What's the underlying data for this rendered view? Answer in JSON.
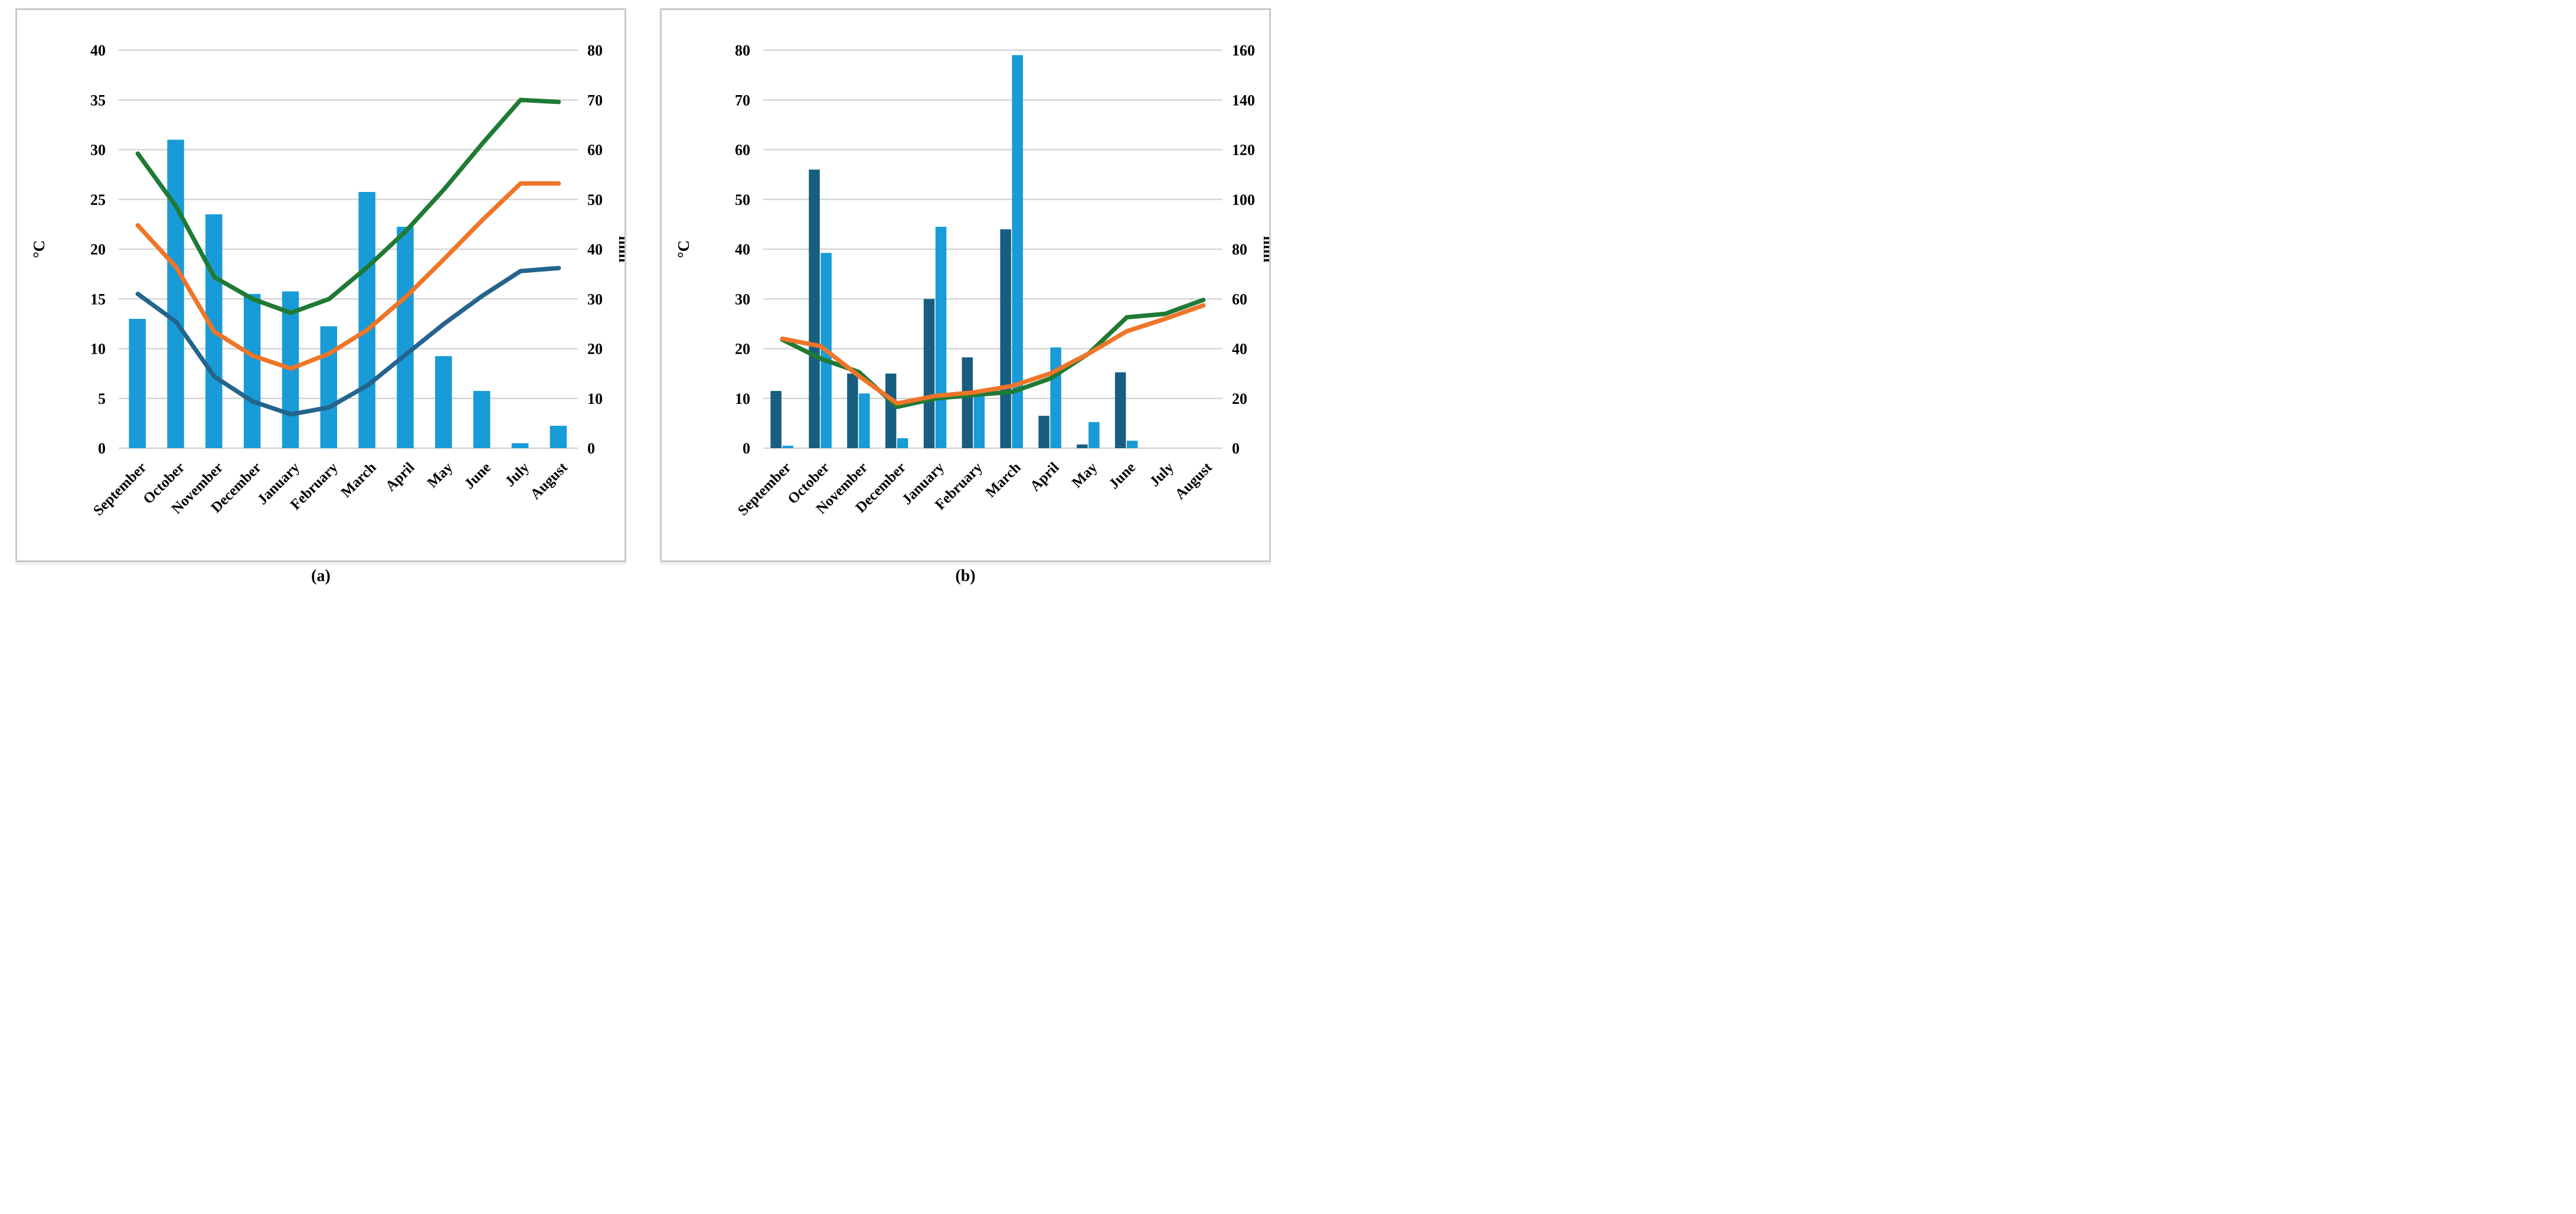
{
  "colors": {
    "gridline": "#d6d6d6",
    "panel_border": "#c9c9c9",
    "bar_light_blue": "#189bd7",
    "bar_dark_blue": "#175e80",
    "line_green": "#1f7a34",
    "line_orange": "#ef7528",
    "line_steel_blue": "#24648d",
    "mm_label_gray": "#7f7f7f",
    "axis_text": "#000000"
  },
  "chart_data": [
    {
      "type": "bar+line combo (climograph)",
      "caption": "(a)",
      "categories": [
        "September",
        "October",
        "November",
        "December",
        "January",
        "February",
        "March",
        "April",
        "May",
        "June",
        "July",
        "August"
      ],
      "left_axis": {
        "unit": "°C",
        "min": 0,
        "max": 40,
        "ticks": [
          0,
          5,
          10,
          15,
          20,
          25,
          30,
          35,
          40
        ],
        "unit_color": "#000000"
      },
      "right_axis": {
        "unit": "mm",
        "min": 0,
        "max": 80,
        "ticks": [
          0,
          10,
          20,
          30,
          40,
          50,
          60,
          70,
          80
        ],
        "unit_color": "#000000"
      },
      "grid": "horizontal",
      "legend": "none",
      "bar_series": [
        {
          "name": "light-blue-precipitation-bars",
          "axis": "right",
          "color": "#189bd7",
          "values": [
            26,
            62,
            47,
            31,
            31.5,
            24.5,
            51.5,
            44.5,
            18.5,
            11.5,
            1,
            4.5
          ]
        }
      ],
      "line_series": [
        {
          "name": "green-line-max-temperature",
          "axis": "left",
          "color": "#1f7a34",
          "values": [
            29.6,
            24.3,
            17.2,
            15.0,
            13.6,
            15.0,
            18.2,
            21.8,
            26.0,
            30.6,
            35.0,
            34.8
          ]
        },
        {
          "name": "orange-line-mean-temperature",
          "axis": "left",
          "color": "#ef7528",
          "values": [
            22.4,
            18.2,
            11.7,
            9.3,
            8.0,
            9.5,
            11.9,
            15.2,
            19.0,
            22.9,
            26.6,
            26.6
          ]
        },
        {
          "name": "steel-blue-line-min-temperature",
          "axis": "left",
          "color": "#24648d",
          "values": [
            15.5,
            12.7,
            7.2,
            4.7,
            3.4,
            4.1,
            6.3,
            9.4,
            12.5,
            15.3,
            17.8,
            18.1
          ]
        }
      ]
    },
    {
      "type": "bar+line combo (climograph)",
      "caption": "(b)",
      "categories": [
        "September",
        "October",
        "November",
        "December",
        "January",
        "February",
        "March",
        "April",
        "May",
        "June",
        "July",
        "August"
      ],
      "left_axis": {
        "unit": "°C",
        "min": 0,
        "max": 80,
        "ticks": [
          0,
          10,
          20,
          30,
          40,
          50,
          60,
          70,
          80
        ],
        "unit_color": "#000000"
      },
      "right_axis": {
        "unit": "mm",
        "min": 0,
        "max": 160,
        "ticks": [
          0,
          20,
          40,
          60,
          80,
          100,
          120,
          140,
          160
        ],
        "unit_color": "#7f7f7f"
      },
      "grid": "horizontal",
      "legend": "none",
      "bar_series": [
        {
          "name": "dark-blue-precipitation-bars",
          "axis": "right",
          "color": "#175e80",
          "values": [
            23,
            112,
            30,
            30,
            60,
            36.5,
            88,
            13,
            1.5,
            30.5,
            0,
            0
          ]
        },
        {
          "name": "light-blue-precipitation-bars",
          "axis": "right",
          "color": "#189bd7",
          "values": [
            1,
            78.5,
            22,
            4,
            89,
            21.5,
            158,
            40.5,
            10.5,
            3,
            0,
            0
          ]
        }
      ],
      "line_series": [
        {
          "name": "green-temperature-line",
          "axis": "left",
          "color": "#1f7a34",
          "values": [
            21.8,
            18.0,
            15.3,
            8.3,
            10.0,
            10.7,
            11.3,
            14.0,
            19.0,
            26.3,
            27.0,
            29.8
          ]
        },
        {
          "name": "orange-temperature-line",
          "axis": "left",
          "color": "#ef7528",
          "values": [
            22.0,
            20.5,
            14.5,
            9.0,
            10.5,
            11.2,
            12.5,
            15.0,
            19.0,
            23.5,
            26.0,
            28.7
          ]
        }
      ]
    }
  ]
}
